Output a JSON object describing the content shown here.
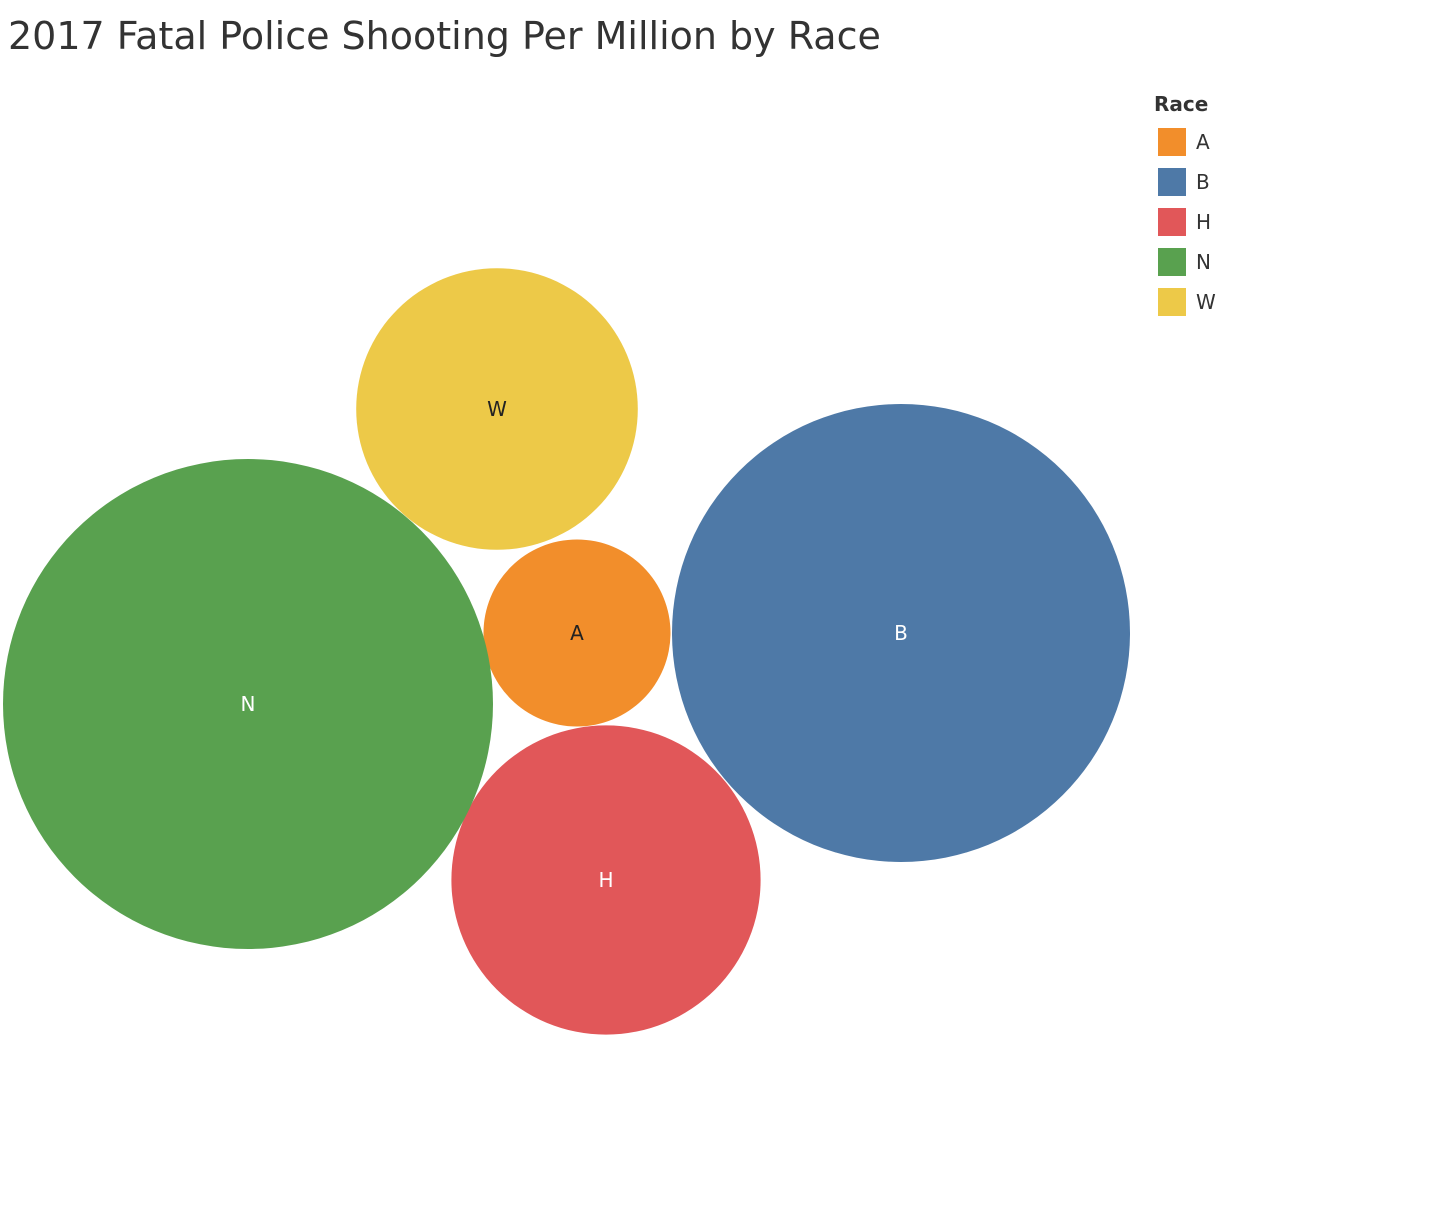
{
  "chart_data": {
    "type": "packed-bubble",
    "title": "2017 Fatal Police Shooting Per Million by Race",
    "legend_title": "Race",
    "legend_placement": "top-right",
    "categories": [
      "A",
      "B",
      "H",
      "N",
      "W"
    ],
    "colors": {
      "A": "#f28e2b",
      "B": "#4e79a7",
      "H": "#e15759",
      "N": "#59a14f",
      "W": "#edc948"
    },
    "label_colors": {
      "A": "#222222",
      "B": "#ffffff",
      "H": "#ffffff",
      "N": "#ffffff",
      "W": "#222222"
    },
    "values": [
      {
        "race": "A",
        "per_million": 1.5
      },
      {
        "race": "B",
        "per_million": 9.0
      },
      {
        "race": "H",
        "per_million": 4.1
      },
      {
        "race": "N",
        "per_million": 10.3
      },
      {
        "race": "W",
        "per_million": 3.4
      }
    ]
  }
}
